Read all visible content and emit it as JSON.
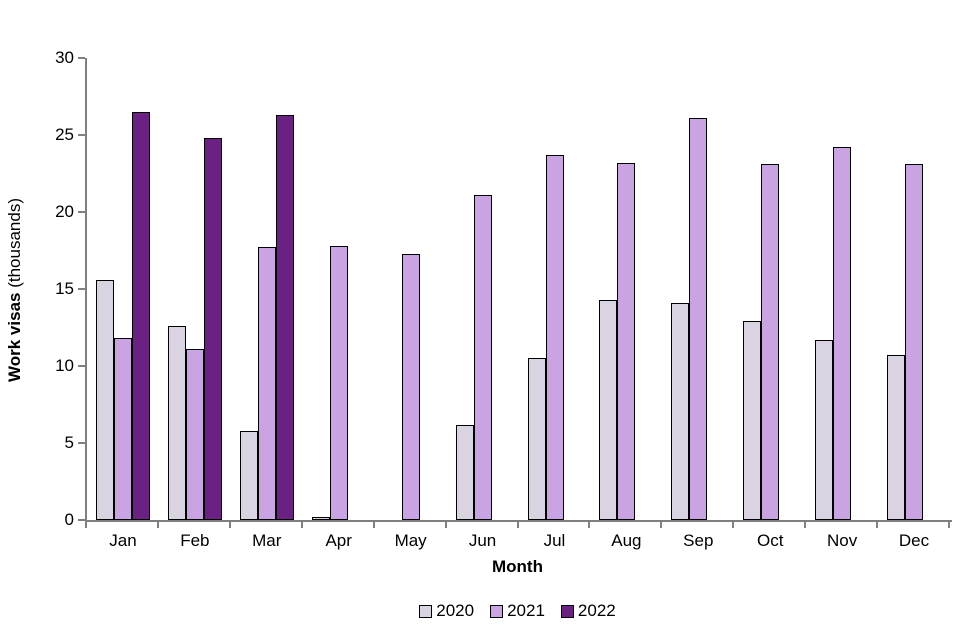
{
  "chart_data": {
    "type": "bar",
    "title": "",
    "categories": [
      "Jan",
      "Feb",
      "Mar",
      "Apr",
      "May",
      "Jun",
      "Jul",
      "Aug",
      "Sep",
      "Oct",
      "Nov",
      "Dec"
    ],
    "series": [
      {
        "name": "2020",
        "color": "#DAD4E2",
        "values": [
          15.6,
          12.6,
          5.8,
          0.1,
          0,
          6.2,
          10.5,
          14.3,
          14.1,
          12.9,
          11.7,
          10.7
        ]
      },
      {
        "name": "2021",
        "color": "#C9A3E2",
        "values": [
          11.8,
          11.1,
          17.7,
          17.8,
          17.3,
          21.1,
          23.7,
          23.2,
          26.1,
          23.1,
          24.2,
          23.1
        ]
      },
      {
        "name": "2022",
        "color": "#6B2183",
        "values": [
          26.5,
          24.8,
          26.3,
          null,
          null,
          null,
          null,
          null,
          null,
          null,
          null,
          null
        ]
      }
    ],
    "xlabel": "Month",
    "ylabel": "Work visas (thousands)",
    "ylabel_bold": "Work visas",
    "ylabel_rest": " (thousands)",
    "ylim": [
      0,
      30
    ],
    "yticks": [
      0,
      5,
      10,
      15,
      20,
      25,
      30
    ],
    "grid": "off",
    "legend_position": "bottom",
    "bar_border_color": "#000000",
    "axis_color": "#808080",
    "text_color": "#000000"
  }
}
